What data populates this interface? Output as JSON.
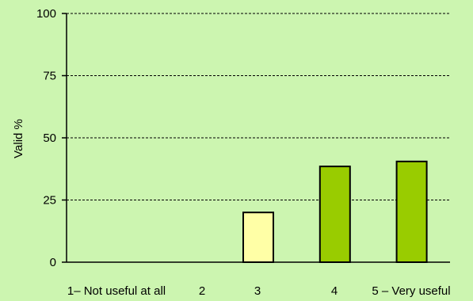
{
  "chart_data": {
    "type": "bar",
    "title": "",
    "xlabel": "",
    "ylabel": "Valid %",
    "ylim": [
      0,
      100
    ],
    "yticks": [
      "0",
      "25",
      "50",
      "75",
      "100"
    ],
    "grid": true,
    "categories": [
      "1– Not  useful at all",
      "2",
      "3",
      "4",
      "5 – Very useful"
    ],
    "values": [
      0,
      0,
      20,
      38.5,
      40.5
    ],
    "bar_colors": [
      "#ffffa6",
      "#ffffa6",
      "#ffffa6",
      "#99cc00",
      "#99cc00"
    ],
    "background_color": "#ccf5b0"
  }
}
